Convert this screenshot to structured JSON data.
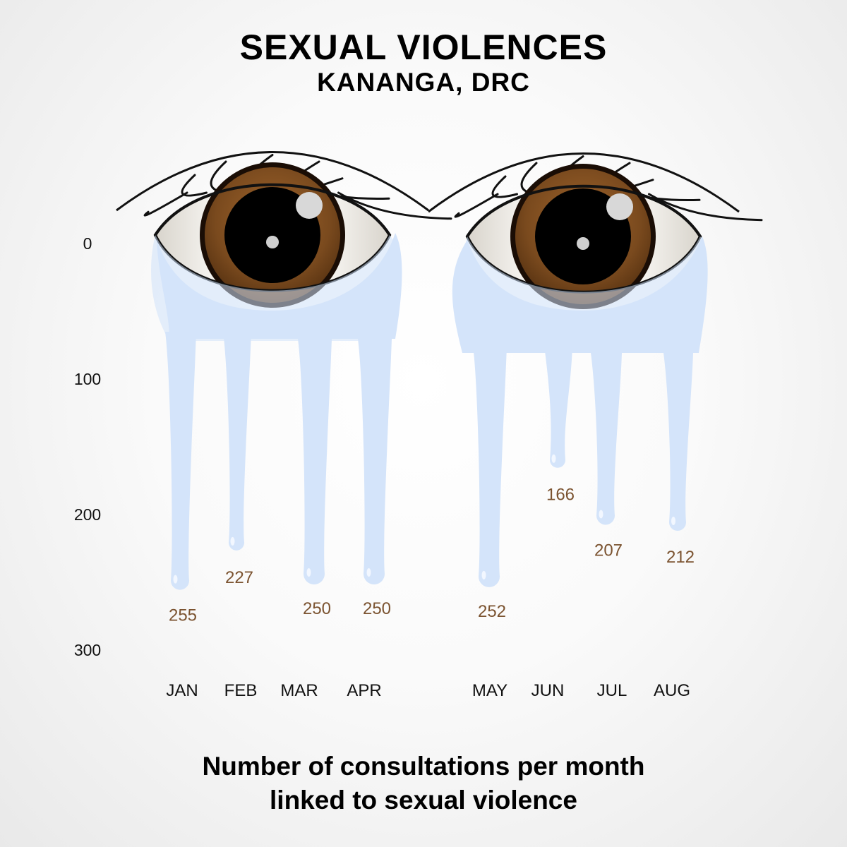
{
  "chart_data": {
    "type": "bar",
    "title": "SEXUAL VIOLENCES",
    "subtitle": "KANANGA, DRC",
    "caption": [
      "Number of consultations per month",
      "linked to sexual violence"
    ],
    "categories": [
      "JAN",
      "FEB",
      "MAR",
      "APR",
      "MAY",
      "JUN",
      "JUL",
      "AUG"
    ],
    "values": [
      255,
      227,
      250,
      250,
      252,
      166,
      207,
      212
    ],
    "yticks": [
      0,
      100,
      200,
      300
    ],
    "ylim": [
      0,
      300
    ],
    "y_inverted": true,
    "xlabel": "",
    "ylabel": "",
    "colors": {
      "tears": "#d4e4fa",
      "iris": "#7a4a1e",
      "labels": "#7b5330"
    }
  }
}
